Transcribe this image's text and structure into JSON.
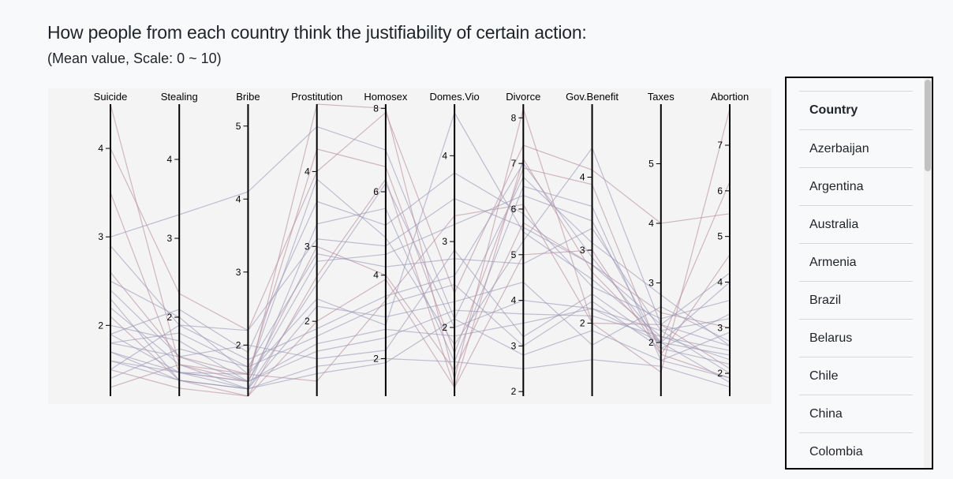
{
  "header": {
    "title": "How people from each country think the justifiability of certain action:",
    "subtitle": "(Mean value, Scale: 0 ~ 10)"
  },
  "colors": {
    "line_a": "#9a98b8",
    "line_b": "#b88a9c",
    "axis": "#000000",
    "plot_bg": "#f4f4f4"
  },
  "chart_data": {
    "type": "parallel-coordinates",
    "axes": [
      {
        "name": "Suicide",
        "domain": [
          1.2,
          4.5
        ],
        "ticks": [
          2,
          3,
          4
        ]
      },
      {
        "name": "Stealing",
        "domain": [
          1.0,
          4.7
        ],
        "ticks": [
          2,
          3,
          4
        ]
      },
      {
        "name": "Bribe",
        "domain": [
          1.3,
          5.3
        ],
        "ticks": [
          2,
          3,
          4,
          5
        ]
      },
      {
        "name": "Prostitution",
        "domain": [
          1.0,
          4.9
        ],
        "ticks": [
          2,
          3,
          4
        ]
      },
      {
        "name": "Homosex",
        "domain": [
          1.1,
          8.1
        ],
        "ticks": [
          2,
          4,
          6,
          8
        ]
      },
      {
        "name": "Domes.Vio",
        "domain": [
          1.2,
          4.6
        ],
        "ticks": [
          2,
          3,
          4
        ]
      },
      {
        "name": "Divorce",
        "domain": [
          1.9,
          8.3
        ],
        "ticks": [
          2,
          3,
          4,
          5,
          6,
          7,
          8
        ]
      },
      {
        "name": "Gov.Benefit",
        "domain": [
          1.0,
          5.0
        ],
        "ticks": [
          2,
          3,
          4
        ]
      },
      {
        "name": "Taxes",
        "domain": [
          1.1,
          6.0
        ],
        "ticks": [
          2,
          3,
          4,
          5
        ]
      },
      {
        "name": "Abortion",
        "domain": [
          1.5,
          7.9
        ],
        "ticks": [
          2,
          3,
          4,
          5,
          6,
          7
        ]
      }
    ],
    "series": [
      {
        "values": [
          4.5,
          1.4,
          1.6,
          1.2,
          3.4,
          3.3,
          6.1,
          2.0,
          2.3,
          2.1
        ],
        "group": "b"
      },
      {
        "values": [
          4.0,
          2.3,
          2.2,
          4.0,
          7.9,
          2.4,
          7.4,
          4.1,
          4.0,
          5.5
        ],
        "group": "b"
      },
      {
        "values": [
          3.5,
          1.3,
          1.5,
          3.0,
          4.0,
          1.5,
          5.7,
          2.8,
          2.5,
          3.0
        ],
        "group": "b"
      },
      {
        "values": [
          3.0,
          3.3,
          4.1,
          4.6,
          7.0,
          2.1,
          6.7,
          3.1,
          2.8,
          2.6
        ],
        "group": "a"
      },
      {
        "values": [
          2.9,
          1.9,
          1.8,
          1.9,
          3.5,
          2.6,
          7.0,
          2.9,
          2.0,
          4.0
        ],
        "group": "a"
      },
      {
        "values": [
          2.5,
          2.0,
          1.6,
          2.3,
          2.8,
          4.5,
          5.5,
          2.6,
          2.1,
          2.3
        ],
        "group": "a"
      },
      {
        "values": [
          2.4,
          1.5,
          1.5,
          2.8,
          4.5,
          3.2,
          6.3,
          3.4,
          1.9,
          3.3
        ],
        "group": "a"
      },
      {
        "values": [
          2.2,
          1.4,
          1.4,
          2.5,
          6.2,
          2.0,
          4.0,
          2.2,
          2.2,
          2.0
        ],
        "group": "a"
      },
      {
        "values": [
          2.1,
          1.2,
          1.3,
          2.0,
          3.9,
          1.3,
          5.0,
          3.0,
          1.8,
          1.9
        ],
        "group": "b"
      },
      {
        "values": [
          2.0,
          1.7,
          1.5,
          1.6,
          2.5,
          2.2,
          3.7,
          2.1,
          2.1,
          2.5
        ],
        "group": "a"
      },
      {
        "values": [
          1.9,
          1.3,
          1.4,
          3.3,
          5.6,
          1.6,
          6.5,
          3.6,
          1.7,
          2.9
        ],
        "group": "a"
      },
      {
        "values": [
          1.8,
          1.5,
          2.0,
          1.5,
          2.2,
          2.9,
          3.2,
          2.4,
          2.0,
          1.8
        ],
        "group": "a"
      },
      {
        "values": [
          1.7,
          1.3,
          1.6,
          3.9,
          4.9,
          1.8,
          5.3,
          4.4,
          2.3,
          4.2
        ],
        "group": "a"
      },
      {
        "values": [
          1.6,
          1.2,
          1.4,
          2.2,
          3.0,
          2.3,
          4.4,
          1.7,
          2.6,
          2.7
        ],
        "group": "a"
      },
      {
        "values": [
          1.5,
          1.1,
          1.3,
          2.6,
          6.3,
          1.3,
          7.1,
          2.7,
          2.0,
          6.2
        ],
        "group": "b"
      },
      {
        "values": [
          1.4,
          1.6,
          1.7,
          1.8,
          3.3,
          2.5,
          3.0,
          2.3,
          1.9,
          2.2
        ],
        "group": "a"
      },
      {
        "values": [
          1.3,
          1.4,
          1.5,
          4.9,
          8.0,
          1.4,
          8.2,
          2.0,
          1.5,
          7.8
        ],
        "group": "b"
      },
      {
        "values": [
          1.9,
          2.1,
          1.9,
          3.6,
          5.2,
          3.8,
          5.9,
          2.5,
          2.4,
          3.6
        ],
        "group": "a"
      },
      {
        "values": [
          2.3,
          1.2,
          1.4,
          1.4,
          2.0,
          1.6,
          2.5,
          1.5,
          1.6,
          1.7
        ],
        "group": "a"
      },
      {
        "values": [
          1.8,
          1.8,
          1.7,
          2.9,
          4.2,
          2.8,
          4.8,
          3.3,
          2.2,
          3.2
        ],
        "group": "a"
      },
      {
        "values": [
          1.6,
          1.3,
          1.5,
          1.7,
          2.7,
          1.9,
          3.5,
          2.2,
          2.0,
          2.4
        ],
        "group": "a"
      },
      {
        "values": [
          2.6,
          1.5,
          1.6,
          4.3,
          6.6,
          1.7,
          6.9,
          3.9,
          1.8,
          4.6
        ],
        "group": "b"
      },
      {
        "values": [
          1.7,
          1.2,
          1.4,
          1.3,
          1.9,
          2.1,
          2.8,
          1.9,
          1.7,
          1.9
        ],
        "group": "a"
      },
      {
        "values": [
          1.5,
          1.9,
          2.2,
          3.1,
          4.7,
          3.5,
          5.6,
          2.8,
          2.3,
          2.6
        ],
        "group": "a"
      }
    ]
  },
  "country_list": {
    "header": "Country",
    "items": [
      "Azerbaijan",
      "Argentina",
      "Australia",
      "Armenia",
      "Brazil",
      "Belarus",
      "Chile",
      "China",
      "Colombia"
    ]
  }
}
